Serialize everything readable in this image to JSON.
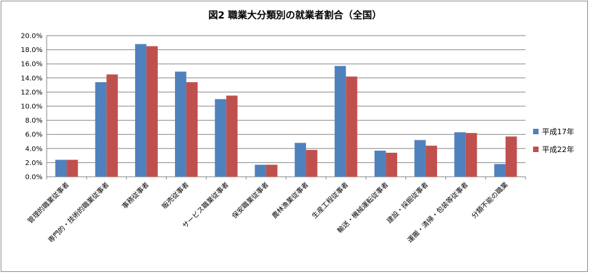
{
  "chart_data": {
    "type": "bar",
    "title": "図2 職業大分類別の就業者割合（全国）",
    "categories": [
      "管理的職業従事者",
      "専門的・技術的職業従事者",
      "事務従事者",
      "販売従事者",
      "サービス職業従事者",
      "保安職業従事者",
      "農林漁業従事者",
      "生産工程従事者",
      "輸送・機械運転従事者",
      "建設・採掘従事者",
      "運搬・清掃・包装等従事者",
      "分類不能の職業"
    ],
    "series": [
      {
        "name": "平成17年",
        "color": "#4f81bd",
        "values": [
          2.4,
          13.4,
          18.8,
          14.9,
          11.0,
          1.7,
          4.8,
          15.7,
          3.7,
          5.2,
          6.3,
          1.8
        ]
      },
      {
        "name": "平成22年",
        "color": "#c0504d",
        "values": [
          2.4,
          14.5,
          18.5,
          13.4,
          11.5,
          1.7,
          3.8,
          14.2,
          3.4,
          4.4,
          6.2,
          5.7
        ]
      }
    ],
    "y_ticks": [
      "0.0%",
      "2.0%",
      "4.0%",
      "6.0%",
      "8.0%",
      "10.0%",
      "12.0%",
      "14.0%",
      "16.0%",
      "18.0%",
      "20.0%"
    ],
    "ylim": [
      0,
      20
    ],
    "grid": true,
    "legend_position": "right"
  }
}
